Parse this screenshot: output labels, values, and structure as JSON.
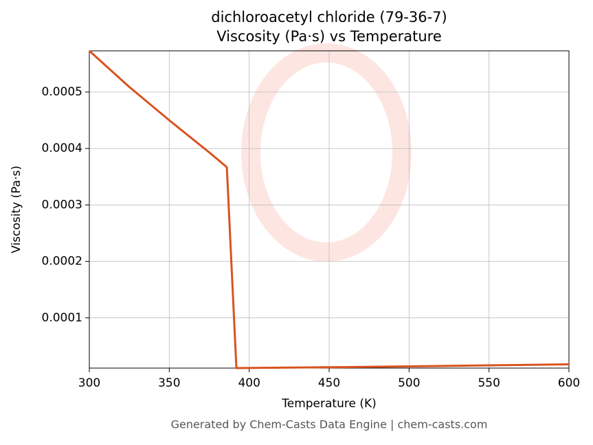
{
  "chart_data": {
    "type": "line",
    "title": "dichloroacetyl chloride (79-36-7)",
    "subtitle": "Viscosity (Pa·s) vs Temperature",
    "x_label": "Temperature (K)",
    "y_label": "Viscosity (Pa·s)",
    "x": [
      300,
      325,
      350,
      375,
      386,
      392,
      450,
      500,
      550,
      600
    ],
    "series": [
      {
        "name": "Viscosity",
        "color": "#d9531e",
        "values": [
          0.000573,
          0.000509,
          0.00045,
          0.000393,
          0.000367,
          1.1e-05,
          1.25e-05,
          1.4e-05,
          1.58e-05,
          1.77e-05
        ]
      }
    ],
    "xlim": [
      300,
      600
    ],
    "ylim": [
      1.1e-05,
      0.000573
    ],
    "xticks": [
      300,
      350,
      400,
      450,
      500,
      550,
      600
    ],
    "yticks": [
      0.0001,
      0.0002,
      0.0003,
      0.0004,
      0.0005
    ],
    "grid": true
  },
  "footer": "Generated by Chem-Casts Data Engine | chem-casts.com"
}
